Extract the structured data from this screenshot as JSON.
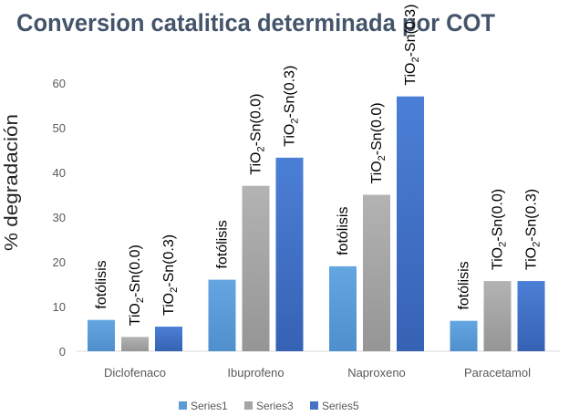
{
  "chart_data": {
    "type": "bar",
    "title": "Conversion catalitica determinada por COT",
    "xlabel": "",
    "ylabel": "% degradación",
    "ylim": [
      0,
      60
    ],
    "yticks": [
      0,
      10,
      20,
      30,
      40,
      50,
      60
    ],
    "grid": false,
    "categories": [
      "Diclofenaco",
      "Ibuprofeno",
      "Naproxeno",
      "Paracetamol"
    ],
    "series": [
      {
        "name": "Series1",
        "color": "#5b9bd5",
        "values": [
          7,
          16,
          19,
          6.8
        ],
        "labels": [
          "fotólisis",
          "fotólisis",
          "fotólisis",
          "fotólisis"
        ]
      },
      {
        "name": "Series3",
        "color": "#a5a5a5",
        "values": [
          3.2,
          37,
          35,
          15.7
        ],
        "labels": [
          "TiO2-Sn(0.0)",
          "TiO2-Sn(0.0)",
          "TiO2-Sn(0.0)",
          "TiO2-Sn(0.0)"
        ]
      },
      {
        "name": "Series5",
        "color": "#4472c4",
        "values": [
          5.5,
          43.3,
          57,
          15.7
        ],
        "labels": [
          "TiO2-Sn(0.3)",
          "TiO2-Sn(0.3)",
          "TiO2-Sn(0.3)",
          "TiO2-Sn(0.3)"
        ]
      }
    ],
    "legend_position": "bottom"
  }
}
